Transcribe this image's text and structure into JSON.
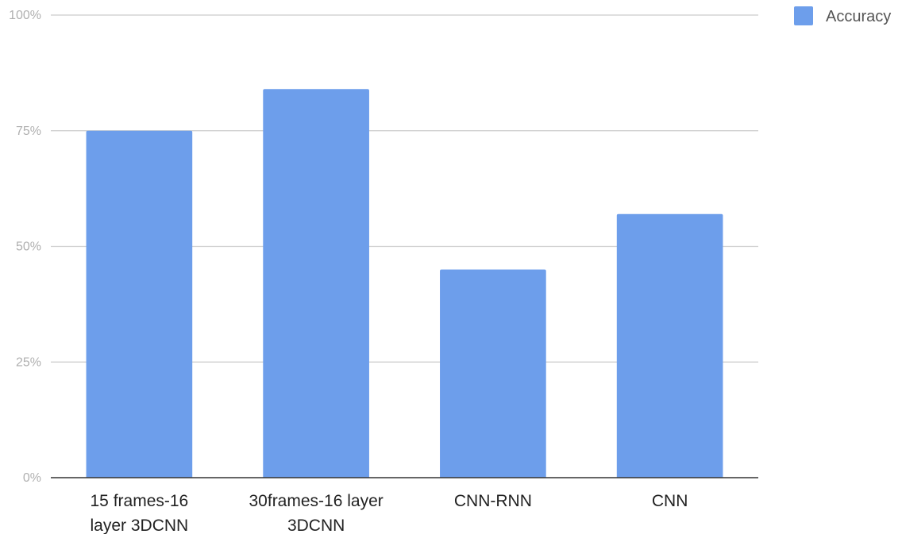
{
  "chart_data": {
    "type": "bar",
    "title": "",
    "xlabel": "",
    "ylabel": "",
    "categories": [
      [
        "15 frames-16",
        "layer 3DCNN"
      ],
      [
        "30frames-16 layer",
        "3DCNN"
      ],
      [
        "CNN-RNN"
      ],
      [
        "CNN"
      ]
    ],
    "series": [
      {
        "name": "Accuracy",
        "color": "#6d9eeb",
        "values": [
          75,
          84,
          45,
          57
        ]
      }
    ],
    "ylim": [
      0,
      100
    ],
    "yticks": [
      0,
      25,
      50,
      75,
      100
    ],
    "ytick_labels": [
      "0%",
      "25%",
      "50%",
      "75%",
      "100%"
    ],
    "grid": true,
    "legend_position": "top-right",
    "colors": {
      "bar": "#6d9eeb",
      "grid": "#cccccc",
      "axis": "#333333",
      "tick_text": "#b0b0b0",
      "category_text": "#222222",
      "legend_text": "#555555"
    }
  }
}
